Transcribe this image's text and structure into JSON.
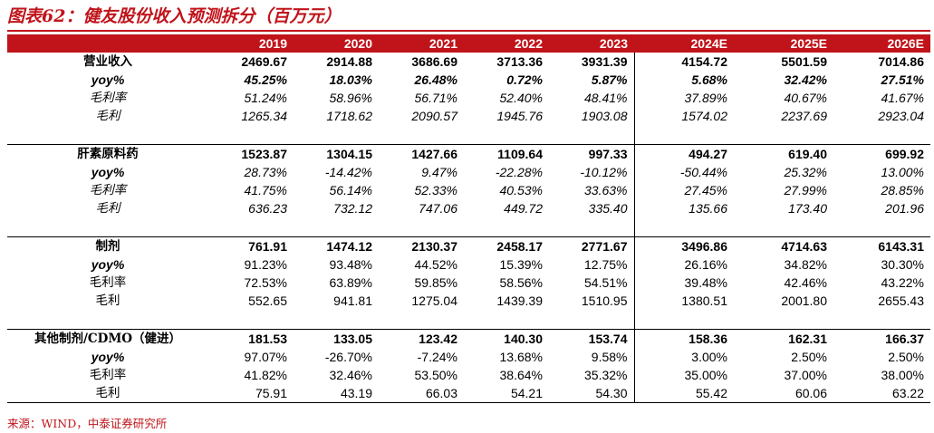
{
  "title": "图表62：健友股份收入预测拆分（百万元）",
  "source": "来源：WIND，中泰证券研究所",
  "years": [
    "2019",
    "2020",
    "2021",
    "2022",
    "2023",
    "2024E",
    "2025E",
    "2026E"
  ],
  "sections": [
    {
      "rows": [
        {
          "label": "营业收入",
          "values": [
            "2469.67",
            "2914.88",
            "3686.69",
            "3713.36",
            "3931.39",
            "4154.72",
            "5501.59",
            "7014.86"
          ]
        },
        {
          "label": "yoy%",
          "values": [
            "45.25%",
            "18.03%",
            "26.48%",
            "0.72%",
            "5.87%",
            "5.68%",
            "32.42%",
            "27.51%"
          ]
        },
        {
          "label": "毛利率",
          "values": [
            "51.24%",
            "58.96%",
            "56.71%",
            "52.40%",
            "48.41%",
            "37.89%",
            "40.67%",
            "41.67%"
          ]
        },
        {
          "label": "毛利",
          "values": [
            "1265.34",
            "1718.62",
            "2090.57",
            "1945.76",
            "1903.08",
            "1574.02",
            "2237.69",
            "2923.04"
          ]
        }
      ]
    },
    {
      "rows": [
        {
          "label": "肝素原料药",
          "values": [
            "1523.87",
            "1304.15",
            "1427.66",
            "1109.64",
            "997.33",
            "494.27",
            "619.40",
            "699.92"
          ]
        },
        {
          "label": "yoy%",
          "values": [
            "28.73%",
            "-14.42%",
            "9.47%",
            "-22.28%",
            "-10.12%",
            "-50.44%",
            "25.32%",
            "13.00%"
          ]
        },
        {
          "label": "毛利率",
          "values": [
            "41.75%",
            "56.14%",
            "52.33%",
            "40.53%",
            "33.63%",
            "27.45%",
            "27.99%",
            "28.85%"
          ]
        },
        {
          "label": "毛利",
          "values": [
            "636.23",
            "732.12",
            "747.06",
            "449.72",
            "335.40",
            "135.66",
            "173.40",
            "201.96"
          ]
        }
      ]
    },
    {
      "rows": [
        {
          "label": "制剂",
          "values": [
            "761.91",
            "1474.12",
            "2130.37",
            "2458.17",
            "2771.67",
            "3496.86",
            "4714.63",
            "6143.31"
          ]
        },
        {
          "label": "yoy%",
          "values": [
            "91.23%",
            "93.48%",
            "44.52%",
            "15.39%",
            "12.75%",
            "26.16%",
            "34.82%",
            "30.30%"
          ]
        },
        {
          "label": "毛利率",
          "values": [
            "72.53%",
            "63.89%",
            "59.85%",
            "58.56%",
            "54.51%",
            "39.48%",
            "42.46%",
            "43.22%"
          ]
        },
        {
          "label": "毛利",
          "values": [
            "552.65",
            "941.81",
            "1275.04",
            "1439.39",
            "1510.95",
            "1380.51",
            "2001.80",
            "2655.43"
          ]
        }
      ]
    },
    {
      "rows": [
        {
          "label": "其他制剂/CDMO（健进）",
          "values": [
            "181.53",
            "133.05",
            "123.42",
            "140.30",
            "153.74",
            "158.36",
            "162.31",
            "166.37"
          ]
        },
        {
          "label": "yoy%",
          "values": [
            "97.07%",
            "-26.70%",
            "-7.24%",
            "13.68%",
            "9.58%",
            "3.00%",
            "2.50%",
            "2.50%"
          ]
        },
        {
          "label": "毛利率",
          "values": [
            "41.82%",
            "32.46%",
            "53.50%",
            "38.64%",
            "35.32%",
            "35.00%",
            "37.00%",
            "38.00%"
          ]
        },
        {
          "label": "毛利",
          "values": [
            "75.91",
            "43.19",
            "66.03",
            "54.21",
            "54.30",
            "55.42",
            "60.06",
            "63.22"
          ]
        }
      ]
    }
  ]
}
